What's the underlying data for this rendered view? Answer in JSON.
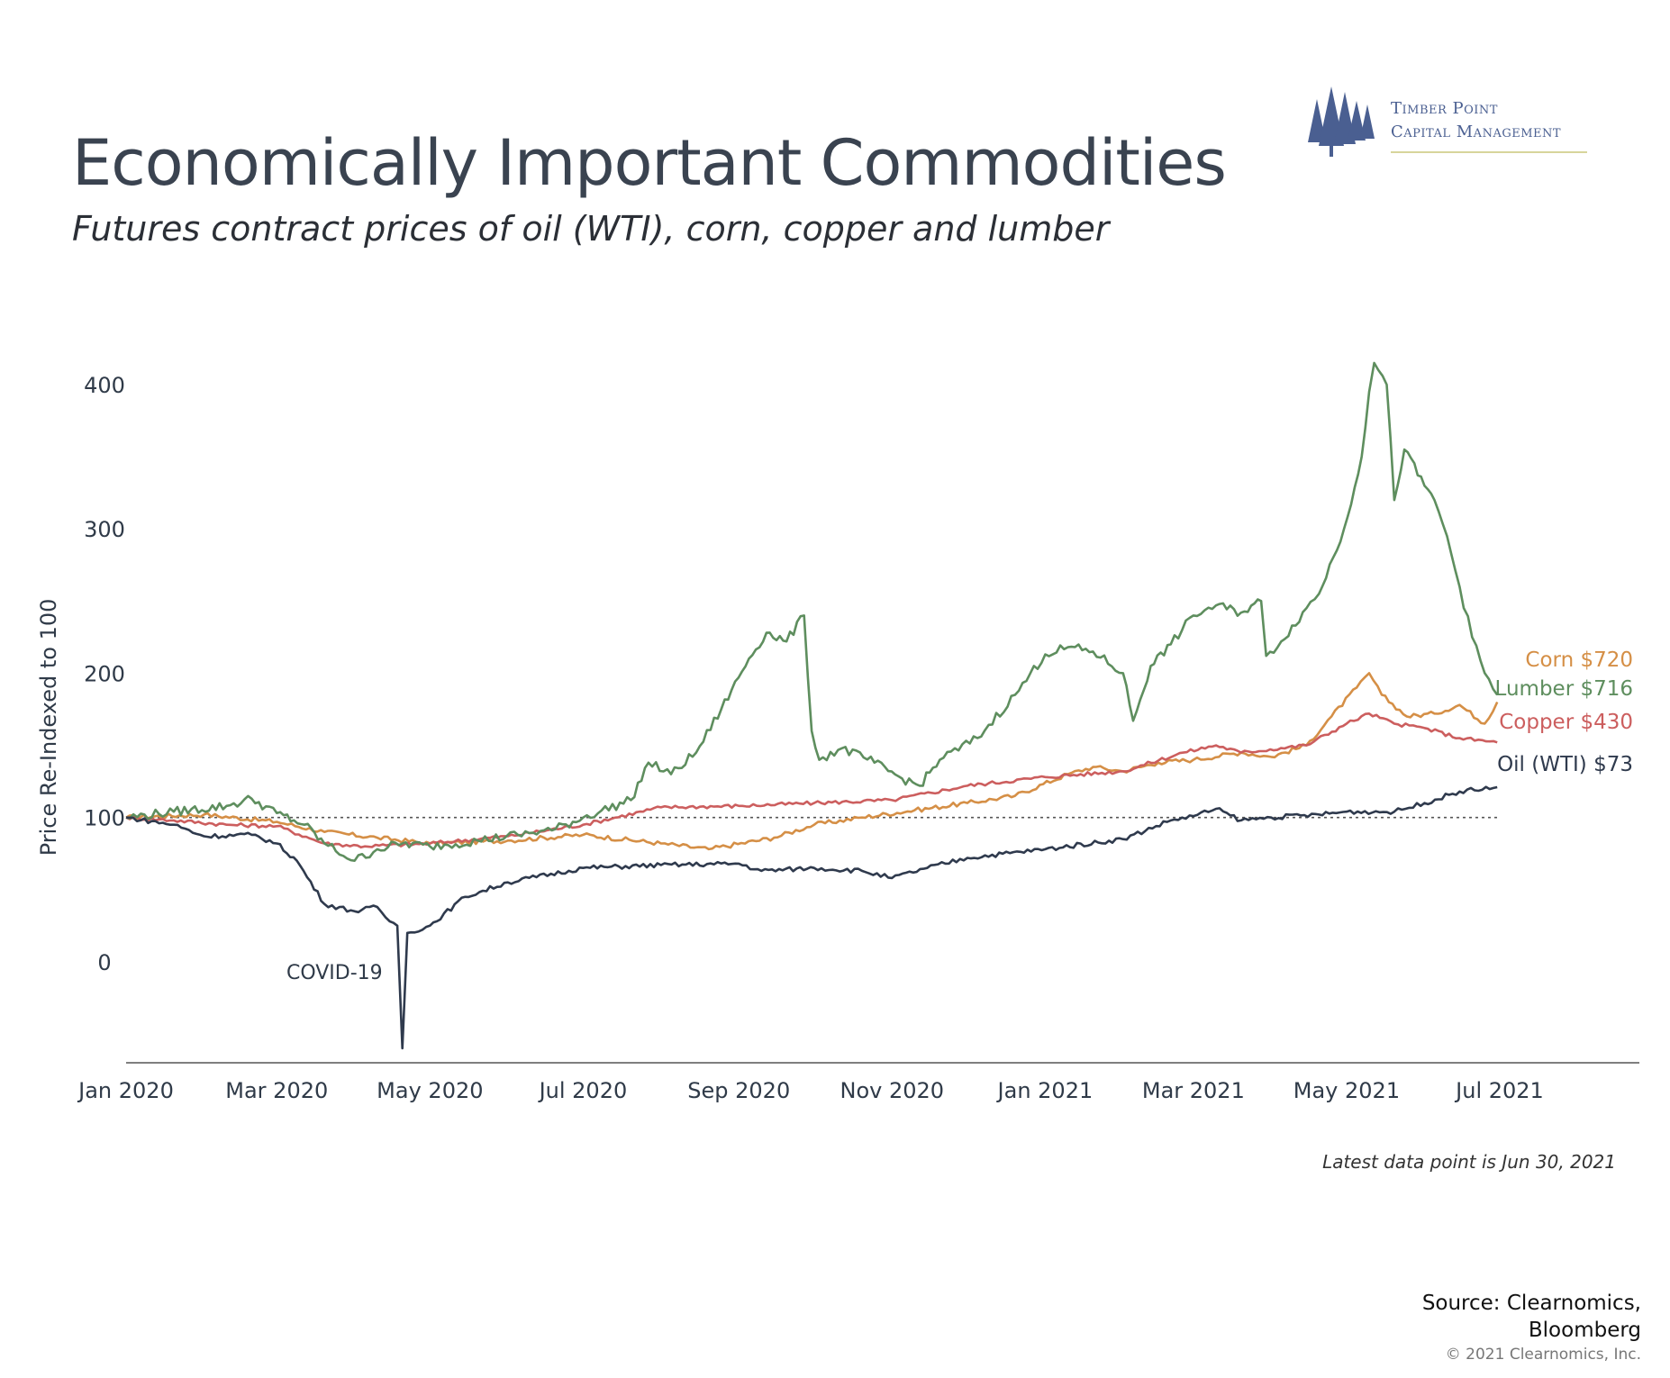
{
  "header": {
    "title": "Economically Important Commodities",
    "subtitle": "Futures contract prices of oil (WTI), corn, copper and lumber"
  },
  "logo": {
    "line1": "Timber Point",
    "line2": "Capital Management",
    "icon": "pine-trees-icon",
    "color": "#4a5f91",
    "accent": "#d7d59b"
  },
  "footnote": "Latest data point is Jun 30, 2021",
  "source": {
    "line1": "Source: Clearnomics,",
    "line2": "Bloomberg",
    "copyright": "© 2021 Clearnomics, Inc."
  },
  "chart_data": {
    "type": "line",
    "title": "",
    "xlabel": "",
    "ylabel": "Price Re-Indexed to 100",
    "ylim": [
      -70,
      420
    ],
    "yticks": [
      0,
      100,
      200,
      300,
      400
    ],
    "xticks": [
      "Jan 2020",
      "Mar 2020",
      "May 2020",
      "Jul 2020",
      "Sep 2020",
      "Nov 2020",
      "Jan 2021",
      "Mar 2021",
      "May 2021",
      "Jul 2021"
    ],
    "xtick_dates": [
      "2020-01-01",
      "2020-03-01",
      "2020-05-01",
      "2020-07-01",
      "2020-09-01",
      "2020-11-01",
      "2021-01-01",
      "2021-03-01",
      "2021-05-01",
      "2021-07-01"
    ],
    "reference_line": 100,
    "grid": false,
    "legend": "end-labels",
    "annotations": [
      {
        "text": "COVID-19",
        "date": "2020-04-20"
      }
    ],
    "series": [
      {
        "name": "Lumber",
        "end_label": "Lumber $716",
        "color": "#5e8e5e",
        "points": [
          [
            "2020-01-01",
            100
          ],
          [
            "2020-01-20",
            104
          ],
          [
            "2020-02-10",
            108
          ],
          [
            "2020-02-20",
            113
          ],
          [
            "2020-03-01",
            103
          ],
          [
            "2020-03-12",
            95
          ],
          [
            "2020-03-20",
            82
          ],
          [
            "2020-04-01",
            70
          ],
          [
            "2020-04-10",
            78
          ],
          [
            "2020-04-20",
            82
          ],
          [
            "2020-05-01",
            80
          ],
          [
            "2020-05-20",
            84
          ],
          [
            "2020-06-05",
            88
          ],
          [
            "2020-06-20",
            92
          ],
          [
            "2020-07-01",
            100
          ],
          [
            "2020-07-20",
            112
          ],
          [
            "2020-07-27",
            138
          ],
          [
            "2020-08-05",
            130
          ],
          [
            "2020-08-15",
            145
          ],
          [
            "2020-08-25",
            175
          ],
          [
            "2020-09-05",
            210
          ],
          [
            "2020-09-12",
            228
          ],
          [
            "2020-09-20",
            222
          ],
          [
            "2020-09-27",
            240
          ],
          [
            "2020-09-30",
            160
          ],
          [
            "2020-10-03",
            140
          ],
          [
            "2020-10-12",
            148
          ],
          [
            "2020-10-25",
            138
          ],
          [
            "2020-11-05",
            127
          ],
          [
            "2020-11-12",
            122
          ],
          [
            "2020-11-20",
            140
          ],
          [
            "2020-12-05",
            155
          ],
          [
            "2020-12-20",
            185
          ],
          [
            "2021-01-01",
            213
          ],
          [
            "2021-01-10",
            218
          ],
          [
            "2021-01-20",
            215
          ],
          [
            "2021-02-01",
            200
          ],
          [
            "2021-02-05",
            167
          ],
          [
            "2021-02-12",
            205
          ],
          [
            "2021-02-20",
            220
          ],
          [
            "2021-03-01",
            240
          ],
          [
            "2021-03-10",
            247
          ],
          [
            "2021-03-20",
            242
          ],
          [
            "2021-03-28",
            250
          ],
          [
            "2021-03-30",
            212
          ],
          [
            "2021-04-05",
            222
          ],
          [
            "2021-04-15",
            245
          ],
          [
            "2021-04-20",
            255
          ],
          [
            "2021-04-30",
            300
          ],
          [
            "2021-05-07",
            350
          ],
          [
            "2021-05-10",
            395
          ],
          [
            "2021-05-12",
            415
          ],
          [
            "2021-05-17",
            400
          ],
          [
            "2021-05-20",
            320
          ],
          [
            "2021-05-24",
            355
          ],
          [
            "2021-06-01",
            330
          ],
          [
            "2021-06-05",
            320
          ],
          [
            "2021-06-10",
            295
          ],
          [
            "2021-06-15",
            260
          ],
          [
            "2021-06-20",
            225
          ],
          [
            "2021-06-25",
            200
          ],
          [
            "2021-06-30",
            185
          ]
        ]
      },
      {
        "name": "Corn",
        "end_label": "Corn $720",
        "color": "#d58f46",
        "points": [
          [
            "2020-01-01",
            100
          ],
          [
            "2020-02-01",
            102
          ],
          [
            "2020-03-01",
            97
          ],
          [
            "2020-03-20",
            90
          ],
          [
            "2020-04-10",
            86
          ],
          [
            "2020-05-01",
            82
          ],
          [
            "2020-06-01",
            84
          ],
          [
            "2020-07-01",
            88
          ],
          [
            "2020-08-01",
            82
          ],
          [
            "2020-08-20",
            78
          ],
          [
            "2020-09-15",
            86
          ],
          [
            "2020-10-01",
            95
          ],
          [
            "2020-10-20",
            100
          ],
          [
            "2020-11-10",
            105
          ],
          [
            "2020-12-01",
            110
          ],
          [
            "2020-12-20",
            115
          ],
          [
            "2021-01-10",
            130
          ],
          [
            "2021-01-20",
            135
          ],
          [
            "2021-02-01",
            132
          ],
          [
            "2021-02-15",
            138
          ],
          [
            "2021-03-01",
            140
          ],
          [
            "2021-03-20",
            145
          ],
          [
            "2021-04-01",
            142
          ],
          [
            "2021-04-15",
            150
          ],
          [
            "2021-04-25",
            170
          ],
          [
            "2021-05-05",
            190
          ],
          [
            "2021-05-10",
            200
          ],
          [
            "2021-05-15",
            185
          ],
          [
            "2021-05-25",
            170
          ],
          [
            "2021-06-05",
            172
          ],
          [
            "2021-06-15",
            178
          ],
          [
            "2021-06-25",
            165
          ],
          [
            "2021-06-30",
            180
          ]
        ]
      },
      {
        "name": "Copper",
        "end_label": "Copper $430",
        "color": "#cc5e5e",
        "points": [
          [
            "2020-01-01",
            100
          ],
          [
            "2020-01-20",
            98
          ],
          [
            "2020-02-10",
            95
          ],
          [
            "2020-03-01",
            94
          ],
          [
            "2020-03-20",
            82
          ],
          [
            "2020-04-05",
            80
          ],
          [
            "2020-05-01",
            82
          ],
          [
            "2020-06-01",
            87
          ],
          [
            "2020-07-01",
            95
          ],
          [
            "2020-08-01",
            107
          ],
          [
            "2020-09-01",
            108
          ],
          [
            "2020-10-01",
            110
          ],
          [
            "2020-11-01",
            112
          ],
          [
            "2020-12-01",
            122
          ],
          [
            "2021-01-01",
            128
          ],
          [
            "2021-02-01",
            132
          ],
          [
            "2021-02-25",
            145
          ],
          [
            "2021-03-10",
            150
          ],
          [
            "2021-03-20",
            145
          ],
          [
            "2021-04-15",
            150
          ],
          [
            "2021-05-01",
            165
          ],
          [
            "2021-05-10",
            172
          ],
          [
            "2021-05-20",
            165
          ],
          [
            "2021-06-01",
            162
          ],
          [
            "2021-06-15",
            155
          ],
          [
            "2021-06-30",
            152
          ]
        ]
      },
      {
        "name": "Oil (WTI)",
        "end_label": "Oil (WTI) $73",
        "color": "#2f3a4d",
        "points": [
          [
            "2020-01-01",
            100
          ],
          [
            "2020-01-20",
            95
          ],
          [
            "2020-02-01",
            87
          ],
          [
            "2020-02-20",
            88
          ],
          [
            "2020-03-01",
            82
          ],
          [
            "2020-03-09",
            70
          ],
          [
            "2020-03-20",
            40
          ],
          [
            "2020-04-01",
            35
          ],
          [
            "2020-04-10",
            38
          ],
          [
            "2020-04-15",
            28
          ],
          [
            "2020-04-18",
            25
          ],
          [
            "2020-04-20",
            -60
          ],
          [
            "2020-04-22",
            20
          ],
          [
            "2020-05-01",
            25
          ],
          [
            "2020-05-15",
            45
          ],
          [
            "2020-06-01",
            55
          ],
          [
            "2020-07-01",
            65
          ],
          [
            "2020-08-01",
            67
          ],
          [
            "2020-09-01",
            68
          ],
          [
            "2020-09-10",
            63
          ],
          [
            "2020-10-01",
            65
          ],
          [
            "2020-10-20",
            63
          ],
          [
            "2020-11-01",
            58
          ],
          [
            "2020-11-15",
            65
          ],
          [
            "2020-12-01",
            72
          ],
          [
            "2021-01-01",
            78
          ],
          [
            "2021-02-01",
            85
          ],
          [
            "2021-02-20",
            98
          ],
          [
            "2021-03-01",
            101
          ],
          [
            "2021-03-10",
            106
          ],
          [
            "2021-03-20",
            98
          ],
          [
            "2021-04-01",
            100
          ],
          [
            "2021-04-20",
            102
          ],
          [
            "2021-05-01",
            104
          ],
          [
            "2021-05-20",
            104
          ],
          [
            "2021-06-01",
            110
          ],
          [
            "2021-06-15",
            118
          ],
          [
            "2021-06-30",
            121
          ]
        ]
      }
    ]
  }
}
